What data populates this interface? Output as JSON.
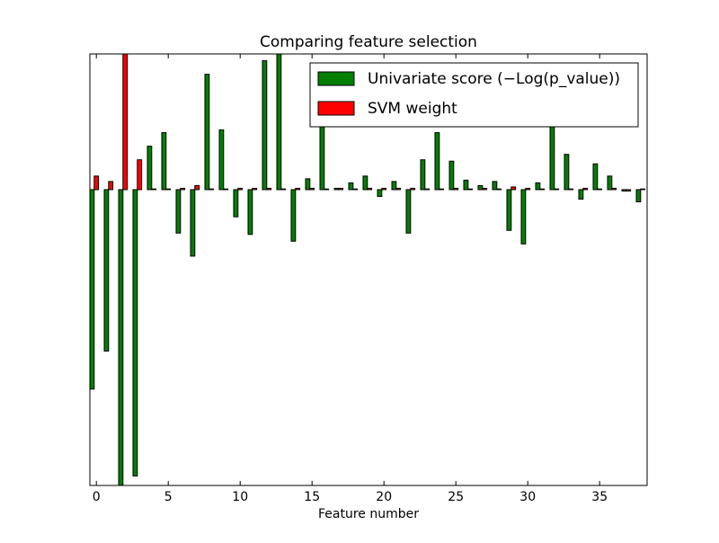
{
  "chart_data": {
    "type": "bar",
    "title": "Comparing feature selection",
    "x_label": "Feature number",
    "x": [
      0,
      1,
      2,
      3,
      4,
      5,
      6,
      7,
      8,
      9,
      10,
      11,
      12,
      13,
      14,
      15,
      16,
      17,
      18,
      19,
      20,
      21,
      22,
      23,
      24,
      25,
      26,
      27,
      28,
      29,
      30,
      31,
      32,
      33,
      34,
      35,
      36,
      37,
      38
    ],
    "series": [
      {
        "name": "Univariate score (−Log(p_value))",
        "color": "#008000",
        "values": [
          -1.47,
          -1.19,
          -2.25,
          -2.11,
          0.32,
          0.42,
          -0.32,
          -0.49,
          0.85,
          0.44,
          -0.2,
          -0.33,
          0.95,
          1.0,
          -0.38,
          0.08,
          0.6,
          0.01,
          0.05,
          0.1,
          -0.05,
          0.06,
          -0.32,
          0.22,
          0.42,
          0.21,
          0.07,
          0.03,
          0.06,
          -0.3,
          -0.4,
          0.05,
          0.55,
          0.26,
          -0.07,
          0.19,
          0.1,
          -0.01,
          -0.09
        ]
      },
      {
        "name": "SVM weight",
        "color": "#ff0000",
        "values": [
          0.1,
          0.06,
          1.0,
          0.22,
          0.005,
          0.005,
          0.01,
          0.03,
          0.005,
          0.005,
          0.01,
          0.01,
          0.01,
          0.005,
          0.01,
          0.01,
          0.005,
          0.01,
          0.005,
          0.01,
          0.01,
          0.01,
          0.01,
          0.005,
          0.005,
          0.01,
          0.005,
          0.01,
          0.005,
          0.02,
          0.01,
          0.005,
          0.005,
          0.005,
          0.01,
          0.005,
          0.01,
          -0.01,
          0.005
        ]
      }
    ],
    "xlim": [
      -0.45,
      38.3
    ],
    "xticks": [
      0,
      5,
      10,
      15,
      20,
      25,
      30,
      35
    ],
    "ylim": [
      -2.18,
      1.0
    ],
    "legend": "upper right"
  }
}
